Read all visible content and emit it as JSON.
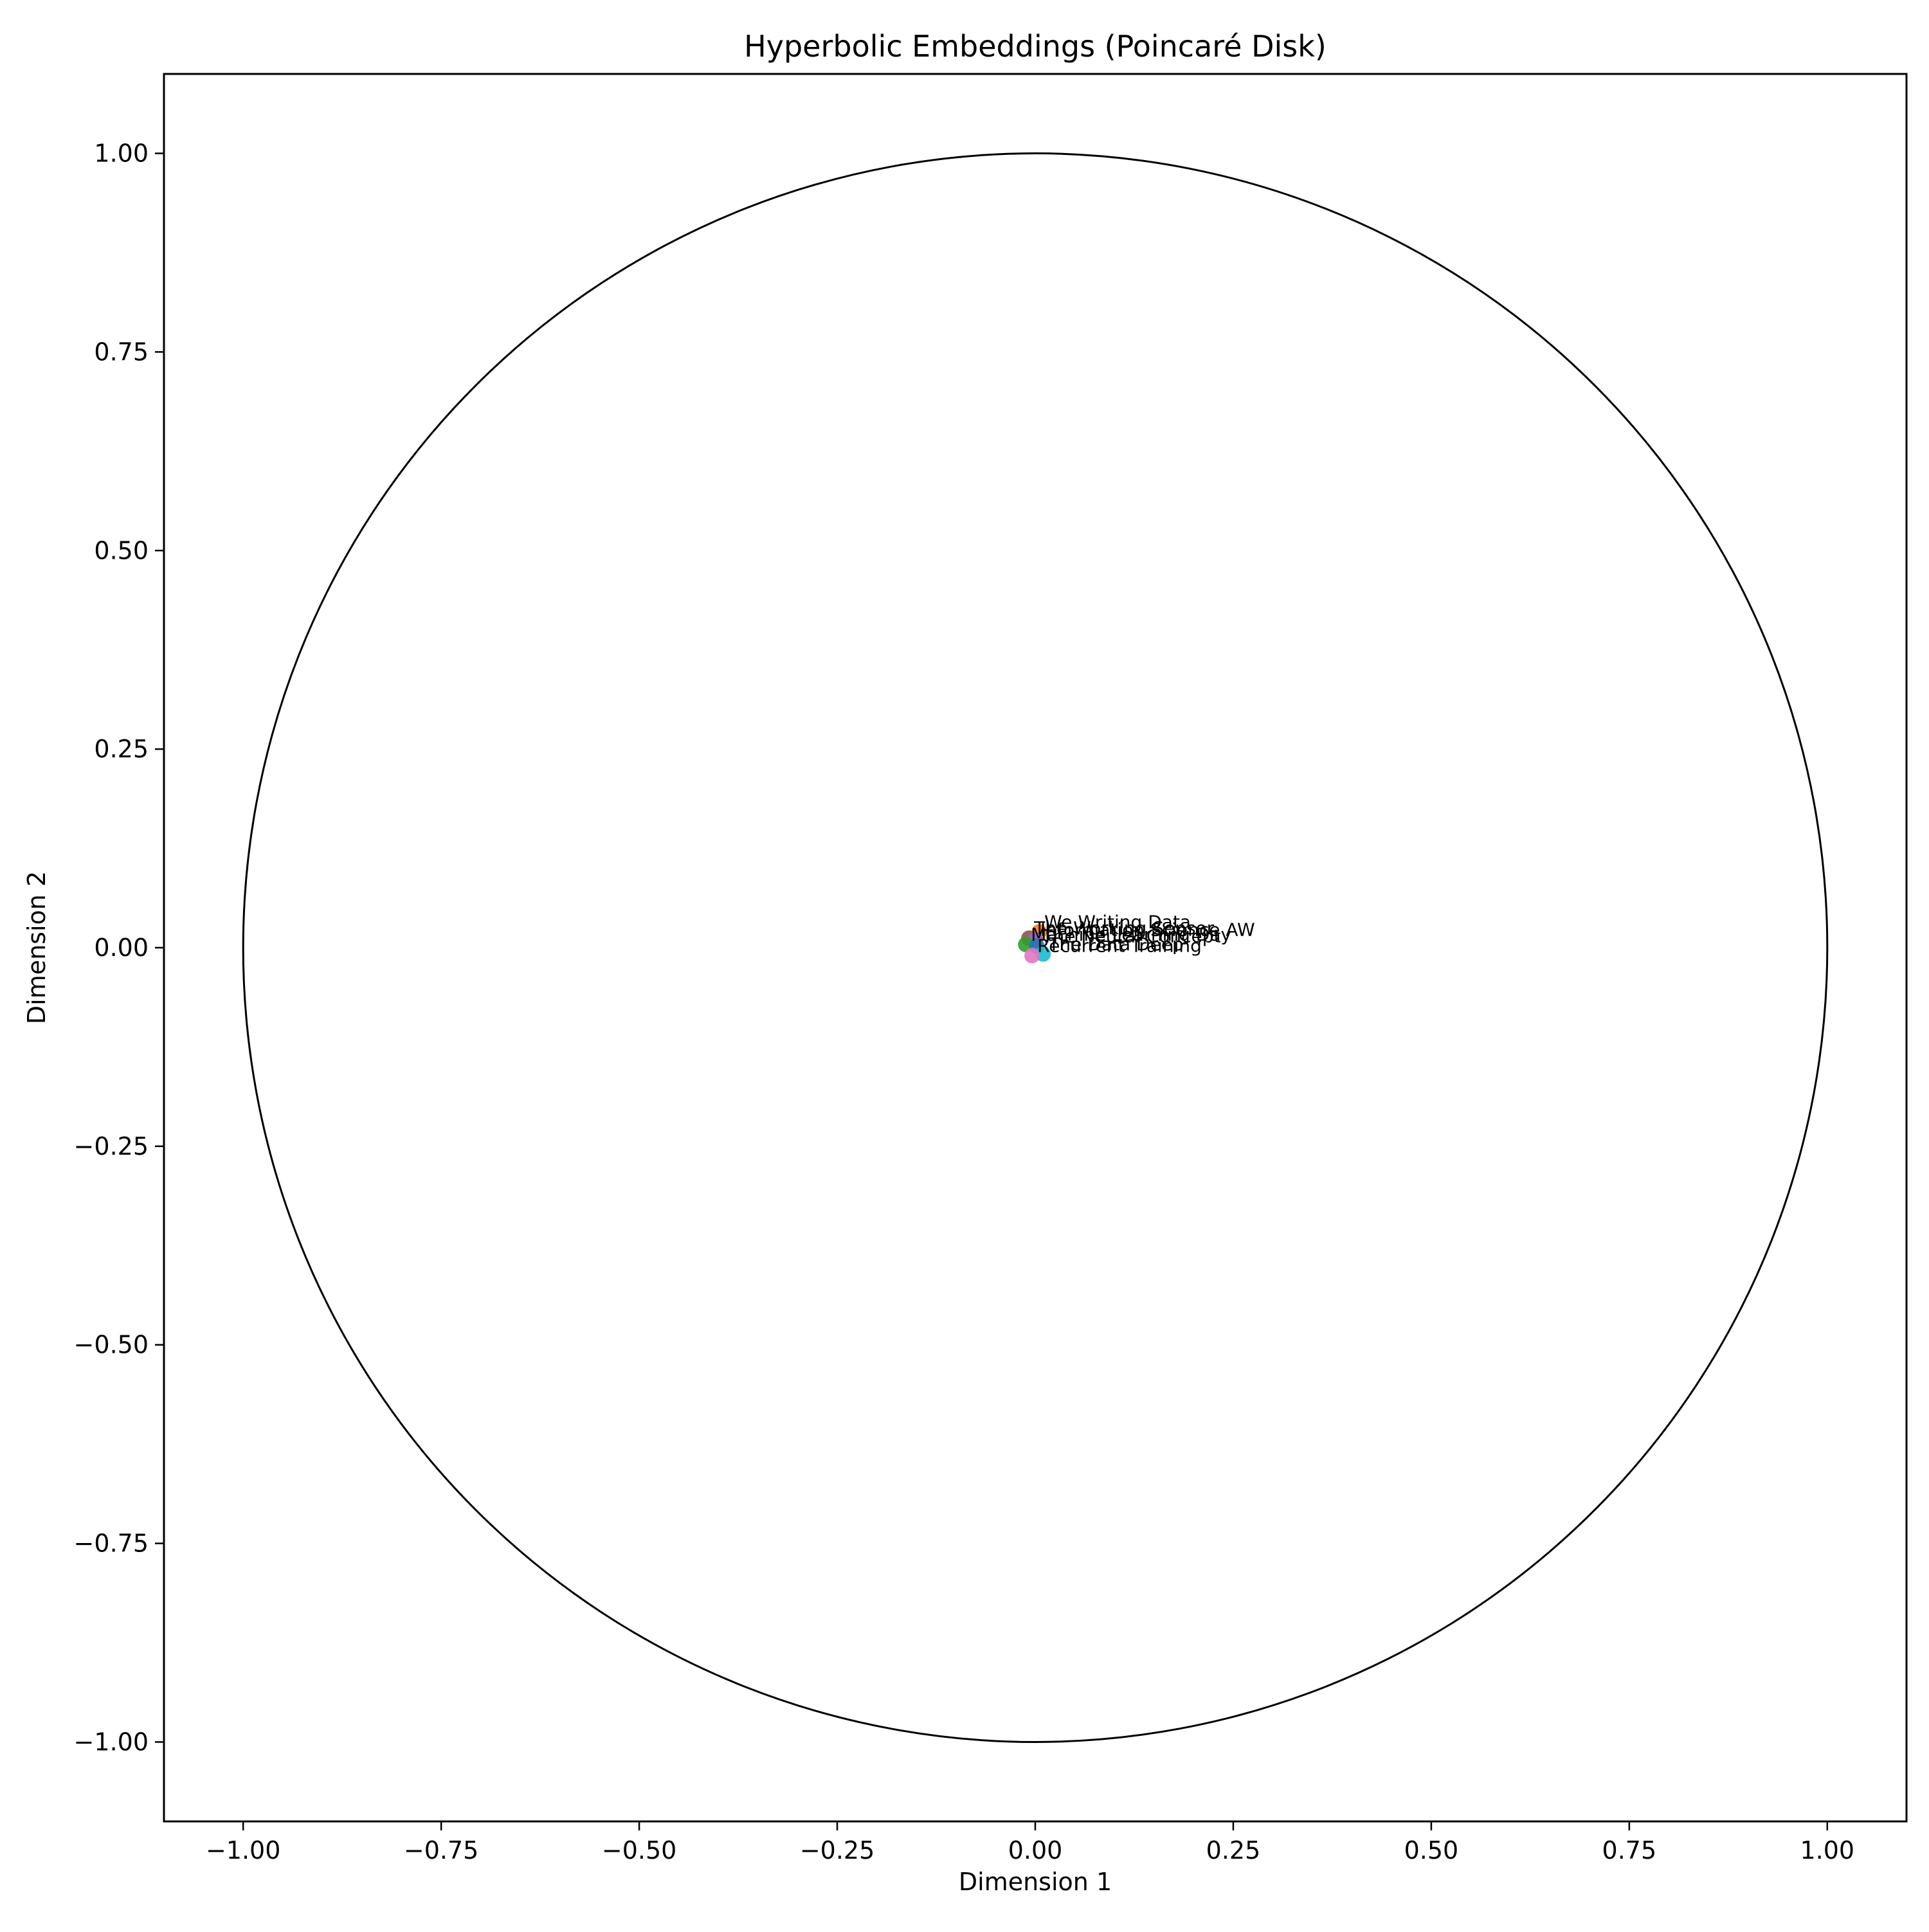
{
  "chart_data": {
    "type": "scatter",
    "title": "Hyperbolic Embeddings (Poincaré Disk)",
    "xlabel": "Dimension 1",
    "ylabel": "Dimension 2",
    "xlim": [
      -1.1,
      1.1
    ],
    "ylim": [
      -1.1,
      1.1
    ],
    "grid": false,
    "legend": "none",
    "xticks": [
      "−1.00",
      "−0.75",
      "−0.50",
      "−0.25",
      "0.00",
      "0.25",
      "0.50",
      "0.75",
      "1.00"
    ],
    "yticks": [
      "−1.00",
      "−0.75",
      "−0.50",
      "−0.25",
      "0.00",
      "0.25",
      "0.50",
      "0.75",
      "1.00"
    ],
    "xtick_values": [
      -1.0,
      -0.75,
      -0.5,
      -0.25,
      0.0,
      0.25,
      0.5,
      0.75,
      1.0
    ],
    "ytick_values": [
      -1.0,
      -0.75,
      -0.5,
      -0.25,
      0.0,
      0.25,
      0.5,
      0.75,
      1.0
    ],
    "boundary_circle": {
      "center": [
        0,
        0
      ],
      "radius": 1.0,
      "color": "#000000"
    },
    "points": [
      {
        "x": 0.005,
        "y": 0.02,
        "color": "#ff7f0e",
        "label": "We Writing Data"
      },
      {
        "x": -0.008,
        "y": 0.012,
        "color": "#8c564b",
        "label": "The Working Sensor"
      },
      {
        "x": 0.0,
        "y": 0.01,
        "color": "#9467bd",
        "label": "Information Science AW"
      },
      {
        "x": -0.012,
        "y": 0.004,
        "color": "#2ca02c",
        "label": "Machine Learning Day"
      },
      {
        "x": 0.002,
        "y": 0.002,
        "color": "#1f77b4",
        "label": "The Neural Concept"
      },
      {
        "x": 0.01,
        "y": -0.008,
        "color": "#17becf",
        "label": "The Data Deep"
      },
      {
        "x": -0.004,
        "y": -0.01,
        "color": "#e377c2",
        "label": "Recurrent Training"
      }
    ]
  }
}
